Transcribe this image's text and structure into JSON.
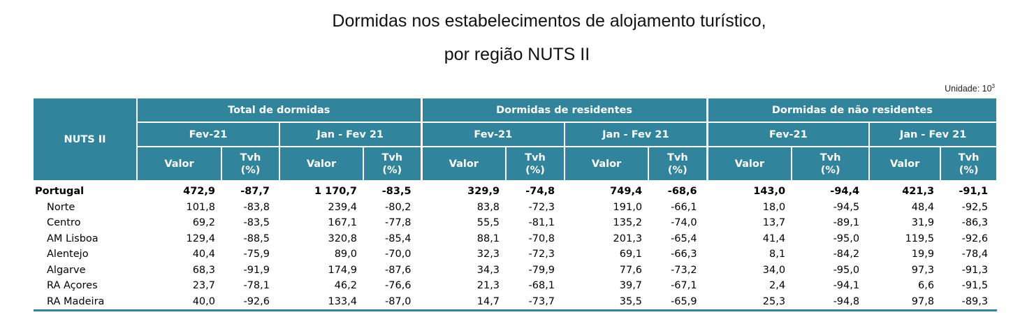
{
  "title_line1": "Dormidas nos estabelecimentos de alojamento turístico,",
  "title_line2": "por região NUTS II",
  "unit_label": "Unidade: 10",
  "unit_exp": "3",
  "header": {
    "nuts": "NUTS II",
    "groups": [
      "Total de dormidas",
      "Dormidas de residentes",
      "Dormidas de não residentes"
    ],
    "periods": [
      "Fev-21",
      "Jan - Fev 21"
    ],
    "col_valor": "Valor",
    "col_tvh_1": "Tvh",
    "col_tvh_2": "(%)"
  },
  "rows": [
    {
      "name": "Portugal",
      "values": [
        "472,9",
        "-87,7",
        "1 170,7",
        "-83,5",
        "329,9",
        "-74,8",
        "749,4",
        "-68,6",
        "143,0",
        "-94,4",
        "421,3",
        "-91,1"
      ]
    },
    {
      "name": "Norte",
      "values": [
        "101,8",
        "-83,8",
        "239,4",
        "-80,2",
        "83,8",
        "-72,3",
        "191,0",
        "-66,1",
        "18,0",
        "-94,5",
        "48,4",
        "-92,5"
      ]
    },
    {
      "name": "Centro",
      "values": [
        "69,2",
        "-83,5",
        "167,1",
        "-77,8",
        "55,5",
        "-81,1",
        "135,2",
        "-74,0",
        "13,7",
        "-89,1",
        "31,9",
        "-86,3"
      ]
    },
    {
      "name": "AM Lisboa",
      "values": [
        "129,4",
        "-88,5",
        "320,8",
        "-85,4",
        "88,1",
        "-70,8",
        "201,3",
        "-65,4",
        "41,4",
        "-95,0",
        "119,5",
        "-92,6"
      ]
    },
    {
      "name": "Alentejo",
      "values": [
        "40,4",
        "-75,9",
        "89,0",
        "-70,0",
        "32,3",
        "-72,3",
        "69,1",
        "-66,3",
        "8,1",
        "-84,2",
        "19,9",
        "-78,4"
      ]
    },
    {
      "name": "Algarve",
      "values": [
        "68,3",
        "-91,9",
        "174,9",
        "-87,6",
        "34,3",
        "-79,9",
        "77,6",
        "-73,2",
        "34,0",
        "-95,0",
        "97,3",
        "-91,3"
      ]
    },
    {
      "name": "RA Açores",
      "values": [
        "23,7",
        "-78,1",
        "46,2",
        "-76,6",
        "21,3",
        "-68,1",
        "39,7",
        "-67,1",
        "2,4",
        "-94,1",
        "6,6",
        "-91,5"
      ]
    },
    {
      "name": "RA Madeira",
      "values": [
        "40,0",
        "-92,6",
        "133,4",
        "-87,0",
        "14,7",
        "-73,7",
        "35,5",
        "-65,9",
        "25,3",
        "-94,8",
        "97,8",
        "-89,3"
      ]
    }
  ]
}
